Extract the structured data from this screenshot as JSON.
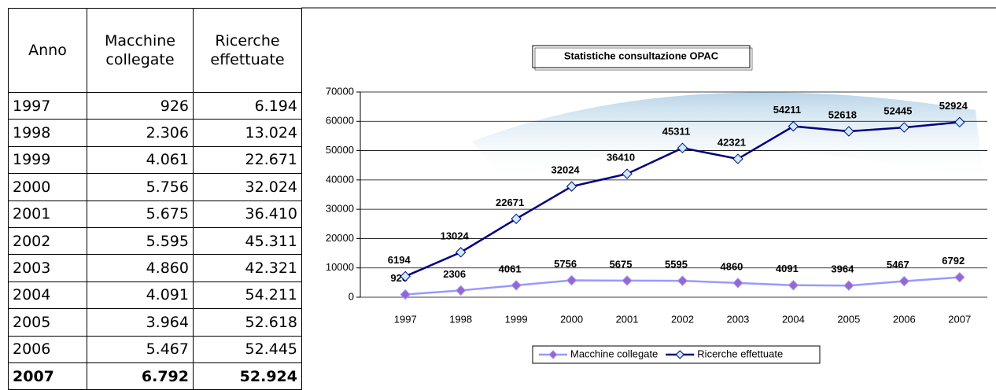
{
  "table": {
    "header": [
      "Anno",
      "Macchine collegate",
      "Ricerche effettuate"
    ],
    "rows": [
      [
        "1997",
        "926",
        "6.194"
      ],
      [
        "1998",
        "2.306",
        "13.024"
      ],
      [
        "1999",
        "4.061",
        "22.671"
      ],
      [
        "2000",
        "5.756",
        "32.024"
      ],
      [
        "2001",
        "5.675",
        "36.410"
      ],
      [
        "2002",
        "5.595",
        "45.311"
      ],
      [
        "2003",
        "4.860",
        "42.321"
      ],
      [
        "2004",
        "4.091",
        "54.211"
      ],
      [
        "2005",
        "3.964",
        "52.618"
      ],
      [
        "2006",
        "5.467",
        "52.445"
      ],
      [
        "2007",
        "6.792",
        "52.924"
      ]
    ]
  },
  "chart_data": {
    "type": "line",
    "stacked": true,
    "title": "Statistiche consultazione OPAC",
    "categories": [
      "1997",
      "1998",
      "1999",
      "2000",
      "2001",
      "2002",
      "2003",
      "2004",
      "2005",
      "2006",
      "2007"
    ],
    "series": [
      {
        "name": "Macchine collegate",
        "color": "#9999ff",
        "marker_color": "#9966cc",
        "values": [
          926,
          2306,
          4061,
          5756,
          5675,
          5595,
          4860,
          4091,
          3964,
          5467,
          6792
        ]
      },
      {
        "name": "Ricerche effettuate",
        "color": "#000080",
        "marker_color": "#ccecff",
        "values": [
          6194,
          13024,
          22671,
          32024,
          36410,
          45311,
          42321,
          54211,
          52618,
          52445,
          52924
        ]
      }
    ],
    "ylim": [
      0,
      70000
    ],
    "yticks": [
      0,
      10000,
      20000,
      30000,
      40000,
      50000,
      60000,
      70000
    ],
    "grid": true,
    "legend": "bottom"
  }
}
